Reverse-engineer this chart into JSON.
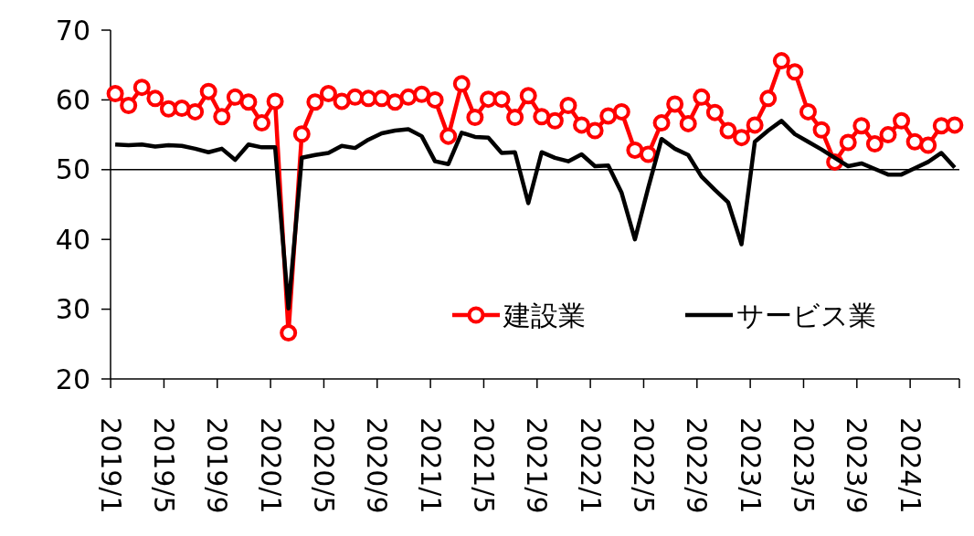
{
  "chart_data": {
    "type": "line",
    "categories": [
      "2019/1",
      null,
      null,
      null,
      "2019/5",
      null,
      null,
      null,
      "2019/9",
      null,
      null,
      null,
      "2020/1",
      null,
      null,
      null,
      "2020/5",
      null,
      null,
      null,
      "2020/9",
      null,
      null,
      null,
      "2021/1",
      null,
      null,
      null,
      "2021/5",
      null,
      null,
      null,
      "2021/9",
      null,
      null,
      null,
      "2022/1",
      null,
      null,
      null,
      "2022/5",
      null,
      null,
      null,
      "2022/9",
      null,
      null,
      null,
      "2023/1",
      null,
      null,
      null,
      "2023/5",
      null,
      null,
      null,
      "2023/9",
      null,
      null,
      null,
      "2024/1",
      null,
      null,
      null
    ],
    "series": [
      {
        "name": "建設業",
        "color": "#ff0000",
        "marker": "circle",
        "values": [
          60.9,
          59.2,
          61.8,
          60.2,
          58.7,
          58.8,
          58.3,
          61.2,
          57.6,
          60.4,
          59.7,
          56.7,
          59.8,
          26.6,
          55.1,
          59.7,
          60.9,
          59.8,
          60.4,
          60.2,
          60.2,
          59.7,
          60.4,
          60.8,
          60.0,
          54.8,
          62.3,
          57.5,
          60.1,
          60.1,
          57.5,
          60.6,
          57.6,
          57.0,
          59.2,
          56.4,
          55.6,
          57.7,
          58.3,
          52.8,
          52.2,
          56.7,
          59.4,
          56.6,
          60.4,
          58.2,
          55.6,
          54.6,
          56.4,
          60.2,
          65.6,
          64.0,
          58.3,
          55.7,
          51.1,
          53.9,
          56.3,
          53.7,
          55.0,
          57.0,
          54.0,
          53.5,
          56.3,
          56.4
        ]
      },
      {
        "name": "サービス業",
        "color": "#000000",
        "marker": "none",
        "values": [
          53.6,
          53.5,
          53.6,
          53.3,
          53.5,
          53.4,
          53.0,
          52.5,
          53.0,
          51.4,
          53.6,
          53.2,
          53.2,
          30.1,
          51.7,
          52.1,
          52.4,
          53.4,
          53.1,
          54.3,
          55.2,
          55.6,
          55.8,
          54.8,
          51.2,
          50.8,
          55.3,
          54.7,
          54.6,
          52.4,
          52.5,
          45.2,
          52.5,
          51.7,
          51.2,
          52.2,
          50.5,
          50.6,
          46.7,
          40.0,
          47.4,
          54.4,
          53.0,
          52.1,
          49.0,
          47.1,
          45.3,
          39.3,
          54.0,
          55.6,
          57.0,
          55.1,
          54.0,
          52.9,
          51.7,
          50.5,
          50.9,
          50.1,
          49.3,
          49.3,
          50.2,
          51.1,
          52.4,
          50.3
        ]
      }
    ],
    "ylim": [
      20,
      70
    ],
    "yticks": [
      20,
      30,
      40,
      50,
      60,
      70
    ],
    "ref_lines": [
      {
        "axis": "y",
        "value": 50,
        "color": "#000000"
      }
    ],
    "legend": "bottom right"
  }
}
